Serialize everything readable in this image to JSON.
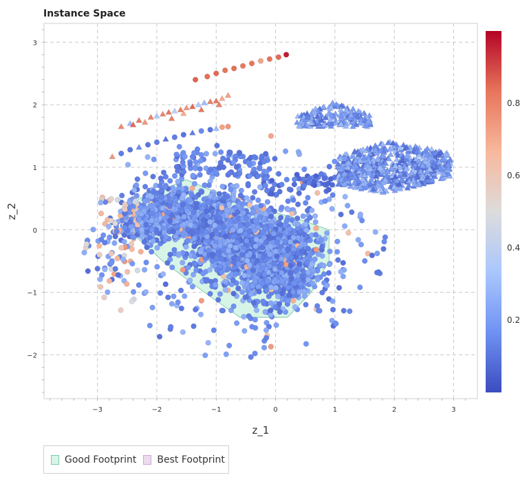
{
  "chart_data": {
    "type": "scatter",
    "title": "Instance Space",
    "xlabel": "z_1",
    "ylabel": "z_2",
    "xlim": [
      -3.9,
      3.4
    ],
    "ylim": [
      -2.7,
      3.3
    ],
    "xticks": [
      -3,
      -2,
      -1,
      0,
      1,
      2,
      3
    ],
    "yticks": [
      -2,
      -1,
      0,
      1,
      2,
      3
    ],
    "xtick_labels": [
      "−3",
      "−2",
      "−1",
      "0",
      "1",
      "2",
      "3"
    ],
    "ytick_labels": [
      "−2",
      "−1",
      "0",
      "1",
      "2",
      "3"
    ],
    "grid": true,
    "colorbar": {
      "colormap": "coolwarm",
      "range": [
        0,
        1
      ],
      "ticks": [
        0.2,
        0.4,
        0.6,
        0.8
      ],
      "tick_labels": [
        "0.2",
        "0.4",
        "0.6",
        "0.8"
      ],
      "stops": [
        "#3b4cc0",
        "#6f92f3",
        "#aac7fd",
        "#dddcdc",
        "#f7b89c",
        "#e7755b",
        "#b40426"
      ]
    },
    "regions": [
      {
        "name": "Good Footprint",
        "fill": "#c9f2df",
        "stroke": "#6fbf9b",
        "polygon": [
          [
            -2.3,
            0.5
          ],
          [
            -1.5,
            0.8
          ],
          [
            -1.0,
            0.6
          ],
          [
            -0.5,
            0.4
          ],
          [
            0.3,
            0.2
          ],
          [
            0.9,
            0.0
          ],
          [
            0.9,
            -0.5
          ],
          [
            0.6,
            -1.0
          ],
          [
            0.2,
            -1.4
          ],
          [
            -0.6,
            -1.4
          ],
          [
            -1.2,
            -1.0
          ],
          [
            -1.9,
            -0.5
          ],
          [
            -2.6,
            0.1
          ]
        ]
      }
    ],
    "series": [
      {
        "marker": "circle",
        "description_of_shape": "line of high-value points",
        "points": [
          [
            -1.35,
            2.4,
            0.86
          ],
          [
            -1.15,
            2.45,
            0.84
          ],
          [
            -1.0,
            2.5,
            0.85
          ],
          [
            -0.85,
            2.55,
            0.83
          ],
          [
            -0.7,
            2.58,
            0.84
          ],
          [
            -0.55,
            2.62,
            0.82
          ],
          [
            -0.4,
            2.66,
            0.83
          ],
          [
            -0.25,
            2.7,
            0.72
          ],
          [
            -0.1,
            2.73,
            0.83
          ],
          [
            0.05,
            2.76,
            0.85
          ],
          [
            0.18,
            2.8,
            0.96
          ]
        ]
      },
      {
        "marker": "triangle",
        "points": [
          [
            -2.6,
            1.65,
            0.78
          ],
          [
            -2.45,
            1.7,
            0.3
          ],
          [
            -2.3,
            1.75,
            0.82
          ],
          [
            -2.2,
            1.72,
            0.75
          ],
          [
            -2.1,
            1.8,
            0.8
          ],
          [
            -2.0,
            1.82,
            0.35
          ],
          [
            -1.9,
            1.85,
            0.78
          ],
          [
            -1.8,
            1.88,
            0.82
          ],
          [
            -1.7,
            1.9,
            0.4
          ],
          [
            -1.6,
            1.92,
            0.8
          ],
          [
            -1.5,
            1.95,
            0.75
          ],
          [
            -1.4,
            1.97,
            0.85
          ],
          [
            -1.3,
            2.0,
            0.35
          ],
          [
            -1.2,
            2.03,
            0.3
          ],
          [
            -1.1,
            2.05,
            0.8
          ],
          [
            -1.0,
            2.06,
            0.82
          ],
          [
            -0.9,
            2.1,
            0.7
          ],
          [
            -0.8,
            2.15,
            0.72
          ],
          [
            -2.4,
            1.68,
            0.85
          ],
          [
            -1.75,
            1.78,
            0.8
          ],
          [
            -1.55,
            1.86,
            0.7
          ],
          [
            -1.25,
            1.92,
            0.82
          ],
          [
            -0.95,
            2.0,
            0.8
          ]
        ]
      },
      {
        "marker": "mixed",
        "points": [
          [
            -2.75,
            1.17,
            0.75
          ],
          [
            -2.6,
            1.22,
            0.12
          ],
          [
            -2.45,
            1.28,
            0.1
          ],
          [
            -2.3,
            1.32,
            0.15
          ],
          [
            -2.15,
            1.36,
            0.1
          ],
          [
            -2.0,
            1.4,
            0.12
          ],
          [
            -1.85,
            1.45,
            0.1
          ],
          [
            -1.7,
            1.48,
            0.12
          ],
          [
            -1.55,
            1.52,
            0.1
          ],
          [
            -1.4,
            1.55,
            0.12
          ],
          [
            -1.25,
            1.58,
            0.15
          ],
          [
            -1.1,
            1.6,
            0.1
          ],
          [
            -1.0,
            1.62,
            0.3
          ],
          [
            -0.9,
            1.64,
            0.72
          ],
          [
            -0.8,
            1.65,
            0.75
          ]
        ]
      },
      {
        "marker": "circle",
        "cluster": "main-blob",
        "center": [
          -0.3,
          -0.25
        ],
        "value_range": [
          0.05,
          0.35
        ]
      },
      {
        "marker": "triangle",
        "cluster": "upper-right-small",
        "center": [
          0.95,
          1.85
        ],
        "value_range": [
          0.05,
          0.3
        ]
      },
      {
        "marker": "triangle",
        "cluster": "right-large",
        "center": [
          2.0,
          0.95
        ],
        "value_range": [
          0.05,
          0.3
        ]
      }
    ],
    "legend": {
      "placement": "bottom-left",
      "items": [
        {
          "label": "Good Footprint",
          "fill": "#d9f5e9",
          "stroke": "#7cc9a4"
        },
        {
          "label": "Best Footprint",
          "fill": "#eadcee",
          "stroke": "#c9a7d3"
        }
      ]
    }
  }
}
